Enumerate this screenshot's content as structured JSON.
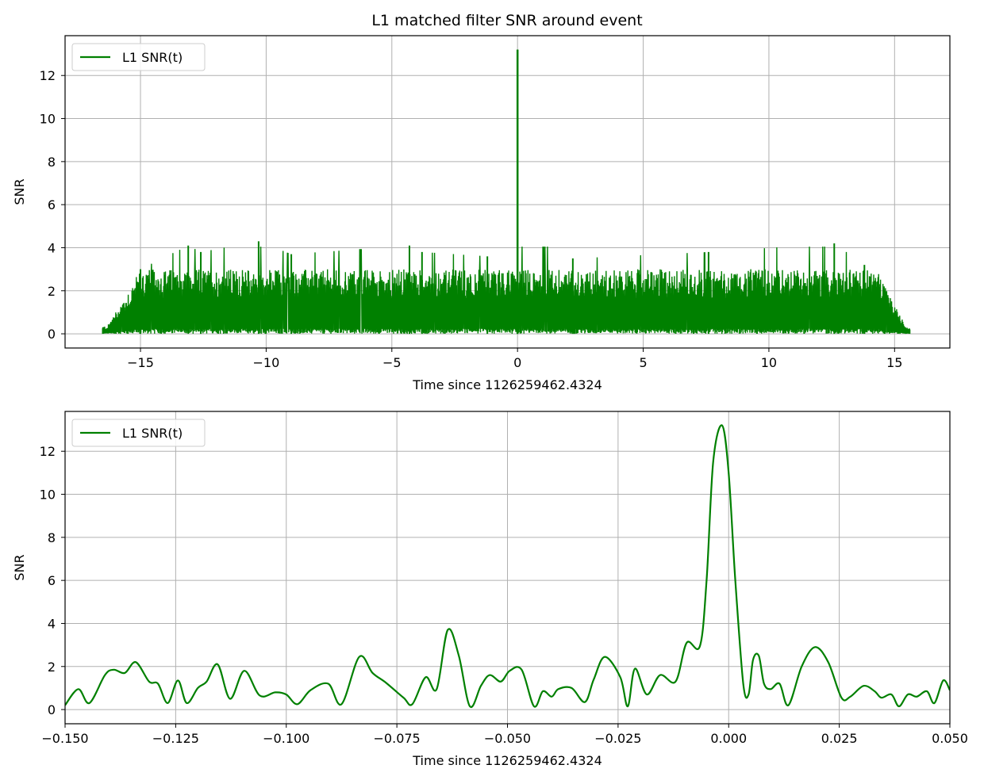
{
  "chart_data": [
    {
      "type": "line",
      "title": "L1 matched filter SNR around event",
      "xlabel": "Time since 1126259462.4324",
      "ylabel": "SNR",
      "xlim": [
        -18.0,
        17.2
      ],
      "ylim": [
        -0.66,
        13.85
      ],
      "xticks": [
        -15,
        -10,
        -5,
        0,
        5,
        10,
        15
      ],
      "xtick_labels": [
        "−15",
        "−10",
        "−5",
        "0",
        "5",
        "10",
        "15"
      ],
      "yticks": [
        0,
        2,
        4,
        6,
        8,
        10,
        12
      ],
      "ytick_labels": [
        "0",
        "2",
        "4",
        "6",
        "8",
        "10",
        "12"
      ],
      "grid": true,
      "legend_position": "top-left",
      "series": [
        {
          "name": "L1 SNR(t)",
          "color": "#008000",
          "description_points": {
            "x": [
              -16.5,
              -15.5,
              -15.0,
              -13.1,
              -12.6,
              -10.3,
              -9.0,
              -4.3,
              -3.8,
              -1.2,
              0.0,
              2.2,
              7.6,
              12.6,
              13.8,
              14.6,
              15.6
            ],
            "y": [
              0.25,
              1.3,
              3.0,
              4.1,
              3.8,
              4.3,
              3.7,
              4.1,
              3.8,
              3.6,
              13.2,
              3.5,
              3.8,
              4.2,
              3.2,
              2.0,
              0.2
            ]
          },
          "peak": {
            "x": 0.0,
            "y": 13.2
          },
          "noise_band": {
            "x_start": -16.5,
            "x_end": 15.6,
            "typical_max": 3.0
          }
        }
      ]
    },
    {
      "type": "line",
      "title": "",
      "xlabel": "Time since 1126259462.4324",
      "ylabel": "SNR",
      "xlim": [
        -0.15,
        0.05
      ],
      "ylim": [
        -0.66,
        13.85
      ],
      "xticks": [
        -0.15,
        -0.125,
        -0.1,
        -0.075,
        -0.05,
        -0.025,
        0.0,
        0.025,
        0.05
      ],
      "xtick_labels": [
        "−0.150",
        "−0.125",
        "−0.100",
        "−0.075",
        "−0.050",
        "−0.025",
        "0.000",
        "0.025",
        "0.050"
      ],
      "yticks": [
        0,
        2,
        4,
        6,
        8,
        10,
        12
      ],
      "ytick_labels": [
        "0",
        "2",
        "4",
        "6",
        "8",
        "10",
        "12"
      ],
      "grid": true,
      "legend_position": "top-left",
      "series": [
        {
          "name": "L1 SNR(t)",
          "color": "#008000",
          "x": [
            -0.15,
            -0.147,
            -0.1445,
            -0.141,
            -0.139,
            -0.1365,
            -0.134,
            -0.131,
            -0.129,
            -0.1268,
            -0.1245,
            -0.1225,
            -0.12,
            -0.118,
            -0.1155,
            -0.1127,
            -0.1095,
            -0.106,
            -0.1025,
            -0.1,
            -0.0975,
            -0.0945,
            -0.0905,
            -0.0875,
            -0.0835,
            -0.0805,
            -0.0775,
            -0.0735,
            -0.0715,
            -0.0685,
            -0.066,
            -0.0635,
            -0.061,
            -0.0585,
            -0.056,
            -0.054,
            -0.0515,
            -0.0495,
            -0.0468,
            -0.044,
            -0.042,
            -0.04,
            -0.0385,
            -0.0355,
            -0.0325,
            -0.0305,
            -0.028,
            -0.0245,
            -0.0228,
            -0.0212,
            -0.0185,
            -0.0155,
            -0.012,
            -0.0095,
            -0.0065,
            -0.005,
            -0.0035,
            -0.0015,
            0.0,
            0.0015,
            0.0033,
            0.0045,
            0.0055,
            0.0068,
            0.008,
            0.0095,
            0.0115,
            0.0135,
            0.0165,
            0.0195,
            0.0225,
            0.0255,
            0.0275,
            0.0305,
            0.033,
            0.0345,
            0.0368,
            0.0385,
            0.0405,
            0.0425,
            0.0448,
            0.0465,
            0.0485,
            0.05
          ],
          "y": [
            0.2,
            0.95,
            0.3,
            1.6,
            1.85,
            1.7,
            2.2,
            1.3,
            1.2,
            0.3,
            1.35,
            0.3,
            1.0,
            1.3,
            2.1,
            0.5,
            1.8,
            0.65,
            0.8,
            0.7,
            0.25,
            0.9,
            1.2,
            0.25,
            2.45,
            1.7,
            1.25,
            0.55,
            0.25,
            1.5,
            0.95,
            3.7,
            2.5,
            0.15,
            1.1,
            1.6,
            1.3,
            1.8,
            1.85,
            0.15,
            0.85,
            0.6,
            0.95,
            1.0,
            0.35,
            1.4,
            2.45,
            1.5,
            0.15,
            1.9,
            0.7,
            1.6,
            1.3,
            3.1,
            2.95,
            6.0,
            11.5,
            13.2,
            11.0,
            6.0,
            1.2,
            0.7,
            2.3,
            2.5,
            1.2,
            0.95,
            1.2,
            0.2,
            2.0,
            2.9,
            2.2,
            0.55,
            0.6,
            1.1,
            0.85,
            0.55,
            0.7,
            0.15,
            0.7,
            0.6,
            0.85,
            0.3,
            1.35,
            0.9
          ]
        }
      ]
    }
  ]
}
